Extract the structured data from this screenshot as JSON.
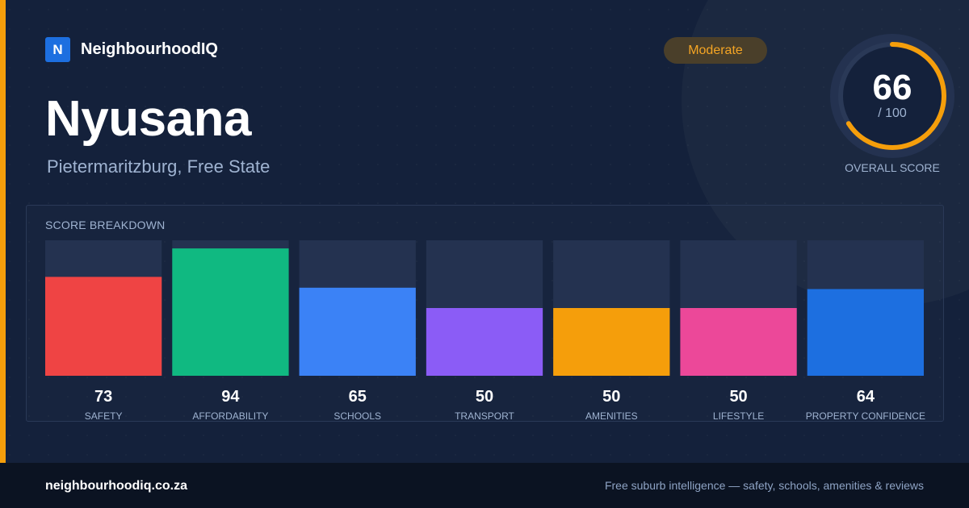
{
  "brand": {
    "icon_letter": "N",
    "name": "NeighbourhoodIQ"
  },
  "suburb": {
    "name": "Nyusana",
    "location": "Pietermaritzburg, Free State"
  },
  "rating": {
    "label": "Moderate",
    "color": "#f5a524"
  },
  "overall": {
    "value": "66",
    "max": "/ 100",
    "caption": "OVERALL SCORE",
    "fraction": 0.66,
    "ring_color": "#f59e0b"
  },
  "breakdown_title": "SCORE BREAKDOWN",
  "chart_data": {
    "type": "bar",
    "title": "SCORE BREAKDOWN",
    "ylim": [
      0,
      100
    ],
    "grid": false,
    "categories": [
      "SAFETY",
      "AFFORDABILITY",
      "SCHOOLS",
      "TRANSPORT",
      "AMENITIES",
      "LIFESTYLE",
      "PROPERTY CONFIDENCE"
    ],
    "values": [
      73,
      94,
      65,
      50,
      50,
      50,
      64
    ],
    "colors": [
      "#ef4444",
      "#10b981",
      "#3b82f6",
      "#8b5cf6",
      "#f59e0b",
      "#ec4899",
      "#1d6fe0"
    ],
    "track_color": "#243250"
  },
  "footer": {
    "url": "neighbourhoodiq.co.za",
    "tagline": "Free suburb intelligence — safety, schools, amenities & reviews"
  }
}
